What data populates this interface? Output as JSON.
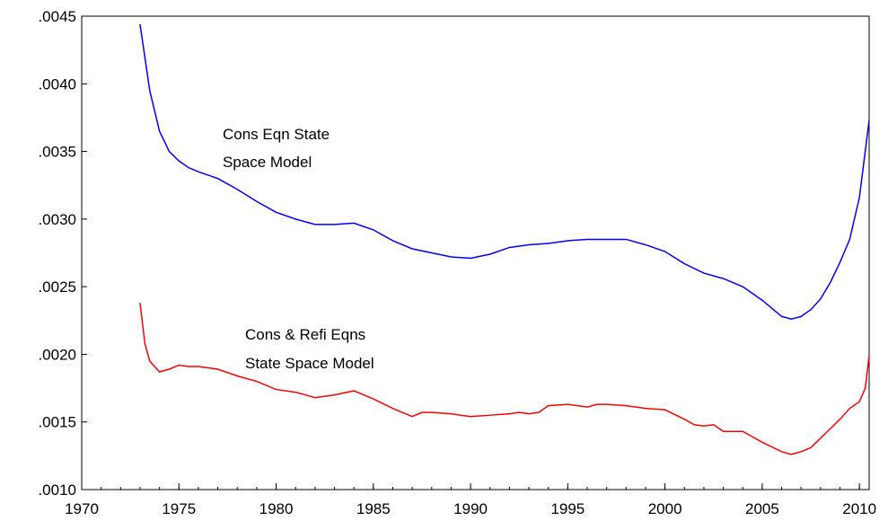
{
  "chart_data": {
    "type": "line",
    "annotations": [
      [
        "Cons Eqn State",
        "Space Model"
      ],
      [
        "Cons & Refi Eqns",
        "State Space Model"
      ]
    ],
    "xlim": [
      1970,
      2010.5
    ],
    "xticks": [
      1970,
      1975,
      1980,
      1985,
      1990,
      1995,
      2000,
      2005,
      2010
    ],
    "ylim": [
      0.001,
      0.0045
    ],
    "yticks": [
      {
        "value": 0.001,
        "label": ".0010"
      },
      {
        "value": 0.0015,
        "label": ".0015"
      },
      {
        "value": 0.002,
        "label": ".0020"
      },
      {
        "value": 0.0025,
        "label": ".0025"
      },
      {
        "value": 0.003,
        "label": ".0030"
      },
      {
        "value": 0.0035,
        "label": ".0035"
      },
      {
        "value": 0.004,
        "label": ".0040"
      },
      {
        "value": 0.0045,
        "label": ".0045"
      }
    ],
    "grid": false,
    "series": [
      {
        "color": "#0000ff",
        "x": [
          1973,
          1973.5,
          1974,
          1974.5,
          1975,
          1975.5,
          1976,
          1977,
          1978,
          1979,
          1980,
          1981,
          1982,
          1983,
          1984,
          1985,
          1986,
          1987,
          1988,
          1989,
          1990,
          1991,
          1992,
          1993,
          1994,
          1995,
          1996,
          1997,
          1998,
          1999,
          2000,
          2001,
          2002,
          2003,
          2004,
          2005,
          2006,
          2006.5,
          2007,
          2007.5,
          2008,
          2008.5,
          2009,
          2009.5,
          2010,
          2010.5
        ],
        "values": [
          0.00444,
          0.00395,
          0.00365,
          0.0035,
          0.00343,
          0.00338,
          0.00335,
          0.0033,
          0.00322,
          0.00313,
          0.00305,
          0.003,
          0.00296,
          0.00296,
          0.00297,
          0.00292,
          0.00284,
          0.00278,
          0.00275,
          0.00272,
          0.00271,
          0.00274,
          0.00279,
          0.00281,
          0.00282,
          0.00284,
          0.00285,
          0.00285,
          0.00285,
          0.00281,
          0.00276,
          0.00267,
          0.0026,
          0.00256,
          0.0025,
          0.0024,
          0.00228,
          0.00226,
          0.00228,
          0.00233,
          0.00241,
          0.00253,
          0.00268,
          0.00285,
          0.00316,
          0.00373
        ]
      },
      {
        "color": "#ff0000",
        "x": [
          1973,
          1973.25,
          1973.5,
          1974,
          1974.5,
          1975,
          1975.5,
          1976,
          1977,
          1978,
          1979,
          1980,
          1981,
          1982,
          1983,
          1984,
          1985,
          1986,
          1987,
          1987.5,
          1988,
          1989,
          1990,
          1991,
          1992,
          1992.5,
          1993,
          1993.5,
          1994,
          1995,
          1996,
          1996.5,
          1997,
          1998,
          1999,
          2000,
          2001,
          2001.5,
          2002,
          2002.5,
          2003,
          2004,
          2005,
          2006,
          2006.5,
          2007,
          2007.5,
          2008,
          2008.5,
          2009,
          2009.5,
          2010,
          2010.3,
          2010.5
        ],
        "values": [
          0.00238,
          0.00208,
          0.00195,
          0.00187,
          0.00189,
          0.00192,
          0.00191,
          0.00191,
          0.00189,
          0.00184,
          0.0018,
          0.00174,
          0.00172,
          0.00168,
          0.0017,
          0.00173,
          0.00167,
          0.0016,
          0.00154,
          0.00157,
          0.00157,
          0.00156,
          0.00154,
          0.00155,
          0.00156,
          0.00157,
          0.00156,
          0.00157,
          0.00162,
          0.00163,
          0.00161,
          0.00163,
          0.00163,
          0.00162,
          0.0016,
          0.00159,
          0.00152,
          0.00148,
          0.00147,
          0.00148,
          0.00143,
          0.00143,
          0.00135,
          0.00128,
          0.00126,
          0.00128,
          0.00131,
          0.00138,
          0.00145,
          0.00152,
          0.0016,
          0.00165,
          0.00175,
          0.00199
        ]
      }
    ]
  }
}
